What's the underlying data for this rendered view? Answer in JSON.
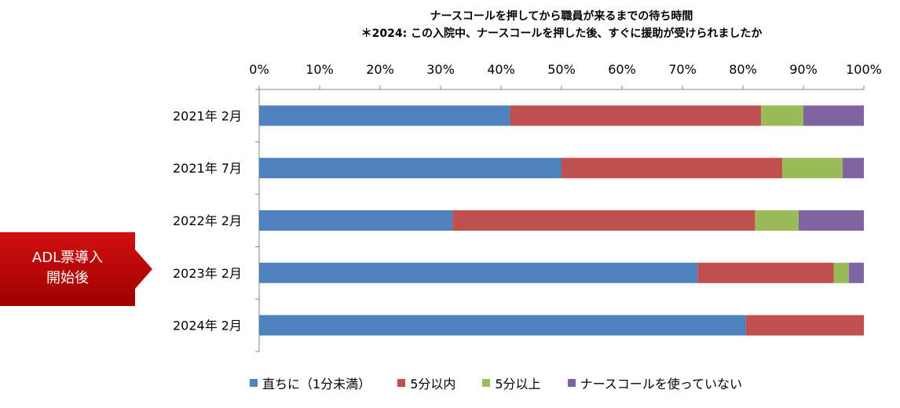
{
  "chart_data": {
    "type": "bar",
    "orientation": "horizontal",
    "stacked": "percent",
    "title": "ナースコールを押してから職員が来るまでの待ち時間",
    "subtitle": "＊2024: この入院中、ナースコールを押した後、すぐに援助が受けられましたか",
    "categories": [
      "2021年  2月",
      "2021年  7月",
      "2022年  2月",
      "2023年  2月",
      "2024年  2月"
    ],
    "series": [
      {
        "name": "直ちに（1分未満）",
        "color": "#4F81BD",
        "values": [
          41.5,
          50.0,
          32.0,
          72.5,
          80.5
        ]
      },
      {
        "name": "5分以内",
        "color": "#C0504D",
        "values": [
          41.5,
          36.5,
          50.0,
          22.5,
          19.5
        ]
      },
      {
        "name": "5分以上",
        "color": "#9BBB59",
        "values": [
          7.0,
          10.0,
          7.2,
          2.5,
          0.0
        ]
      },
      {
        "name": "ナースコールを使っていない",
        "color": "#8064A2",
        "values": [
          10.0,
          3.5,
          10.8,
          2.5,
          0.0
        ]
      }
    ],
    "xticks": [
      "0%",
      "10%",
      "20%",
      "30%",
      "40%",
      "50%",
      "60%",
      "70%",
      "80%",
      "90%",
      "100%"
    ],
    "xlim": [
      0,
      100
    ],
    "x_axis_position": "top",
    "grid": false,
    "legend_position": "bottom"
  },
  "annotation": {
    "callout_text": "ADL票導入\n開始後",
    "color": "#C00000",
    "points_to": "2023年  2月"
  }
}
